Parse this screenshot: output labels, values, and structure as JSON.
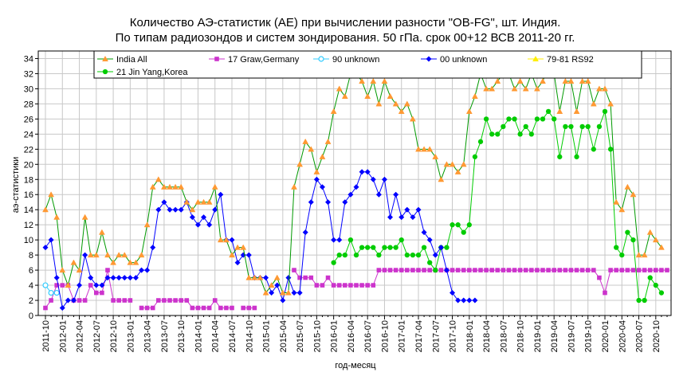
{
  "chart_data": {
    "type": "line",
    "title_line1": "Количество АЭ-статистик (АЕ) при вычислении разности \"OB-FG\", шт. Индия.",
    "title_line2": "По типам радиозондов и систем зондирования. 50 гПа. срок 00+12 ВСВ 2011-20 гг.",
    "xlabel": "год-месяц",
    "ylabel": "аэ-статистики",
    "ylim": [
      0,
      35
    ],
    "yticks": [
      0,
      2,
      4,
      6,
      8,
      10,
      12,
      14,
      16,
      18,
      20,
      22,
      24,
      26,
      28,
      30,
      32,
      34
    ],
    "x_start": "2011-10",
    "x_end": "2020-12",
    "xticks": [
      "2011-10",
      "2012-01",
      "2012-04",
      "2012-07",
      "2012-10",
      "2013-01",
      "2013-04",
      "2013-07",
      "2013-10",
      "2014-01",
      "2014-04",
      "2014-07",
      "2014-10",
      "2015-01",
      "2015-04",
      "2015-07",
      "2015-10",
      "2016-01",
      "2016-04",
      "2016-07",
      "2016-10",
      "2017-01",
      "2017-04",
      "2017-07",
      "2017-10",
      "2018-01",
      "2018-04",
      "2018-07",
      "2018-10",
      "2019-01",
      "2019-04",
      "2019-07",
      "2019-10",
      "2020-01",
      "2020-04",
      "2020-07",
      "2020-10"
    ],
    "grid": true,
    "legend_position": "top",
    "series": [
      {
        "name": "India All",
        "color": "#ff9933",
        "line": "#009900",
        "marker": "triangle",
        "start": "2011-10",
        "values": [
          14,
          16,
          13,
          6,
          4,
          7,
          6,
          13,
          8,
          8,
          11,
          8,
          7,
          8,
          8,
          7,
          7,
          8,
          12,
          17,
          18,
          17,
          17,
          17,
          17,
          15,
          14,
          15,
          15,
          15,
          17,
          10,
          10,
          8,
          9,
          9,
          5,
          5,
          5,
          3,
          4,
          5,
          3,
          3,
          17,
          20,
          23,
          22,
          19,
          21,
          23,
          27,
          30,
          29,
          32,
          32,
          31,
          29,
          31,
          28,
          31,
          29,
          28,
          27,
          28,
          26,
          22,
          22,
          22,
          21,
          18,
          20,
          20,
          19,
          20,
          27,
          29,
          32,
          30,
          30,
          31,
          32,
          32,
          30,
          31,
          30,
          32,
          30,
          31,
          33,
          32,
          27,
          31,
          31,
          27,
          31,
          31,
          28,
          30,
          30,
          28,
          15,
          14,
          17,
          16,
          8,
          8,
          11,
          10,
          9
        ]
      },
      {
        "name": "17 Graw,Germany",
        "color": "#cc33cc",
        "line": "#cc33cc",
        "marker": "square",
        "start": "2011-10",
        "values": [
          1,
          2,
          4,
          4,
          4,
          2,
          2,
          2,
          4,
          3,
          3,
          6,
          2,
          2,
          2,
          2,
          null,
          1,
          1,
          1,
          2,
          2,
          2,
          2,
          2,
          2,
          1,
          1,
          1,
          1,
          2,
          1,
          1,
          1,
          null,
          1,
          1,
          1,
          null,
          null,
          null,
          null,
          null,
          null,
          6,
          5,
          5,
          5,
          4,
          4,
          5,
          4,
          4,
          4,
          4,
          4,
          4,
          4,
          4,
          6,
          6,
          6,
          6,
          6,
          6,
          6,
          6,
          6,
          6,
          6,
          6,
          6,
          6,
          6,
          6,
          6,
          6,
          6,
          6,
          6,
          6,
          6,
          6,
          6,
          6,
          6,
          6,
          6,
          6,
          6,
          6,
          6,
          6,
          6,
          6,
          6,
          6,
          6,
          5,
          3,
          6,
          6,
          6,
          6,
          6,
          6,
          6,
          6,
          6,
          6,
          6
        ]
      },
      {
        "name": "90 unknown",
        "color": "#33ccff",
        "line": "#33ccff",
        "marker": "circle-open",
        "start": "2011-10",
        "values": [
          4,
          3,
          3
        ]
      },
      {
        "name": "00 unknown",
        "color": "#0000ff",
        "line": "#0000ff",
        "marker": "diamond",
        "start": "2011-10",
        "values": [
          9,
          10,
          5,
          1,
          2,
          2,
          4,
          8,
          5,
          4,
          4,
          5,
          5,
          5,
          5,
          5,
          5,
          6,
          6,
          9,
          14,
          15,
          14,
          14,
          14,
          15,
          13,
          12,
          13,
          12,
          14,
          16,
          10,
          10,
          7,
          8,
          8,
          5,
          5,
          5,
          3,
          4,
          2,
          5,
          3,
          3,
          11,
          15,
          18,
          17,
          15,
          10,
          10,
          15,
          16,
          17,
          19,
          19,
          18,
          16,
          18,
          13,
          16,
          13,
          14,
          13,
          14,
          11,
          10,
          8,
          9,
          6,
          3,
          2,
          2,
          2,
          2
        ]
      },
      {
        "name": "79-81 RS92",
        "color": "#ffee00",
        "line": "#ffee00",
        "marker": "triangle",
        "start": "2011-10",
        "values": []
      },
      {
        "name": "21 Jin Yang,Korea",
        "color": "#00cc00",
        "line": "#00cc00",
        "marker": "circle",
        "start": "2016-01",
        "values": [
          7,
          8,
          8,
          10,
          8,
          9,
          9,
          9,
          8,
          9,
          9,
          9,
          10,
          8,
          8,
          8,
          9,
          7,
          6,
          9,
          9,
          12,
          12,
          11,
          12,
          21,
          23,
          26,
          24,
          24,
          25,
          26,
          26,
          24,
          25,
          24,
          26,
          26,
          27,
          26,
          21,
          25,
          25,
          21,
          25,
          25,
          22,
          25,
          27,
          22,
          9,
          8,
          11,
          10,
          2,
          2,
          5,
          4,
          3
        ]
      }
    ]
  }
}
